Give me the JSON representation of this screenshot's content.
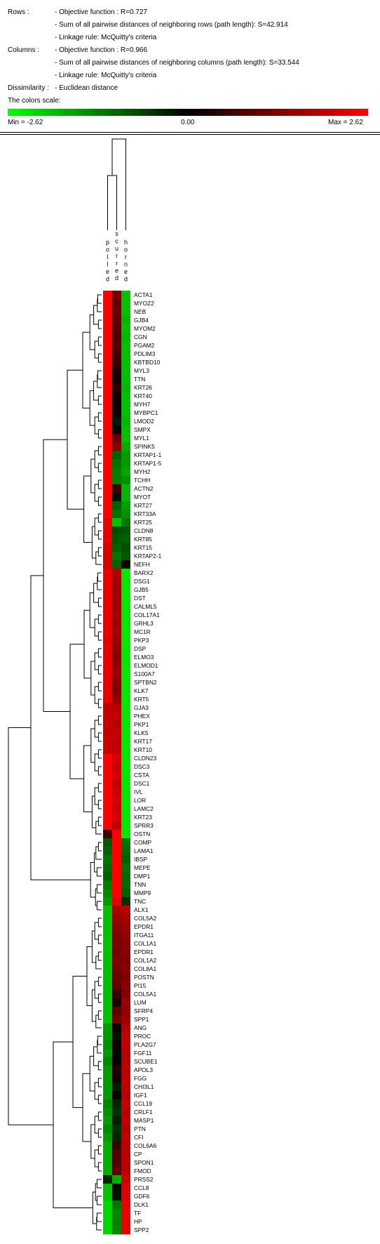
{
  "header": {
    "rows_label": "Rows :",
    "rows_objective": "- Objective function : R=0.727",
    "rows_sum": "- Sum of all pairwise distances of neighboring rows (path length): S=42.914",
    "rows_linkage": "- Linkage rule:  McQuitty's criteria",
    "cols_label": "Columns :",
    "cols_objective": "- Objective function : R=0.966",
    "cols_sum": "- Sum of all pairwise distances of neighboring columns (path length): S=33.544",
    "cols_linkage": "- Linkage rule:  McQuitty's criteria",
    "dissim_label": "Dissimilarity :",
    "dissim_value": "- Euclidean distance",
    "scale_label": "The colors scale:",
    "scale_min": "Min = -2.62",
    "scale_mid": "0.00",
    "scale_max": "Max = 2.62"
  },
  "colors": {
    "low": "#00ff00",
    "mid": "#000000",
    "high": "#ff0000"
  },
  "chart_data": {
    "type": "heatmap",
    "columns": [
      "polled",
      "scurred",
      "horned"
    ],
    "column_labels": [
      [
        "p",
        "o",
        "l",
        "l",
        "e",
        "d"
      ],
      [
        "s",
        "c",
        "u",
        "r",
        "r",
        "e",
        "d"
      ],
      [
        "h",
        "o",
        "r",
        "n",
        "e",
        "d"
      ]
    ],
    "range": [
      -2.62,
      2.62
    ],
    "rows": [
      {
        "gene": "ACTA1",
        "values": [
          2.6,
          1.2,
          -2.0
        ]
      },
      {
        "gene": "MYOZ2",
        "values": [
          2.6,
          1.0,
          -2.0
        ]
      },
      {
        "gene": "NEB",
        "values": [
          2.6,
          1.1,
          -2.0
        ]
      },
      {
        "gene": "GJB4",
        "values": [
          2.6,
          1.0,
          -1.9
        ]
      },
      {
        "gene": "MYOM2",
        "values": [
          2.6,
          0.9,
          -2.0
        ]
      },
      {
        "gene": "CGN",
        "values": [
          2.6,
          0.8,
          -1.9
        ]
      },
      {
        "gene": "PGAM2",
        "values": [
          2.6,
          0.9,
          -2.0
        ]
      },
      {
        "gene": "PDLIM3",
        "values": [
          2.6,
          0.7,
          -2.0
        ]
      },
      {
        "gene": "KBTBD10",
        "values": [
          2.6,
          0.6,
          -2.0
        ]
      },
      {
        "gene": "MYL3",
        "values": [
          2.6,
          0.3,
          -2.0
        ]
      },
      {
        "gene": "TTN",
        "values": [
          2.6,
          0.2,
          -2.0
        ]
      },
      {
        "gene": "KRT26",
        "values": [
          2.6,
          0.4,
          -1.9
        ]
      },
      {
        "gene": "KRT40",
        "values": [
          2.6,
          0.2,
          -2.0
        ]
      },
      {
        "gene": "MYH7",
        "values": [
          2.6,
          0.1,
          -2.0
        ]
      },
      {
        "gene": "MYBPC1",
        "values": [
          2.6,
          0.2,
          -2.0
        ]
      },
      {
        "gene": "LMOD2",
        "values": [
          2.6,
          -0.3,
          -1.9
        ]
      },
      {
        "gene": "SMPX",
        "values": [
          2.6,
          0.1,
          -2.0
        ]
      },
      {
        "gene": "MYL1",
        "values": [
          2.6,
          1.0,
          -2.0
        ]
      },
      {
        "gene": "SPINK5",
        "values": [
          2.6,
          1.4,
          -1.8
        ]
      },
      {
        "gene": "KRTAP1-1",
        "values": [
          2.6,
          -1.0,
          -1.6
        ]
      },
      {
        "gene": "KRTAP1-5",
        "values": [
          2.6,
          -1.2,
          -1.6
        ]
      },
      {
        "gene": "MYH2",
        "values": [
          2.6,
          -1.3,
          -1.7
        ]
      },
      {
        "gene": "TCHH",
        "values": [
          2.6,
          -1.3,
          -1.5
        ]
      },
      {
        "gene": "ACTN2",
        "values": [
          2.6,
          0.6,
          -1.9
        ]
      },
      {
        "gene": "MYOT",
        "values": [
          2.6,
          -0.2,
          -1.9
        ]
      },
      {
        "gene": "KRT27",
        "values": [
          2.6,
          -1.0,
          -1.6
        ]
      },
      {
        "gene": "KRT33A",
        "values": [
          2.6,
          -1.2,
          -1.5
        ]
      },
      {
        "gene": "KRT25",
        "values": [
          2.4,
          -2.0,
          -1.2
        ]
      },
      {
        "gene": "CLDN8",
        "values": [
          2.4,
          -0.8,
          -0.9
        ]
      },
      {
        "gene": "KRT85",
        "values": [
          2.4,
          -0.9,
          -1.0
        ]
      },
      {
        "gene": "KRT15",
        "values": [
          2.2,
          -1.0,
          -0.8
        ]
      },
      {
        "gene": "KRTAP2-1",
        "values": [
          2.2,
          -1.2,
          -0.9
        ]
      },
      {
        "gene": "NEFH",
        "values": [
          2.2,
          -1.0,
          0.1
        ]
      },
      {
        "gene": "BARX2",
        "values": [
          2.4,
          1.8,
          -2.4
        ]
      },
      {
        "gene": "DSG1",
        "values": [
          2.4,
          1.7,
          -2.4
        ]
      },
      {
        "gene": "GJB5",
        "values": [
          2.4,
          1.6,
          -2.4
        ]
      },
      {
        "gene": "DST",
        "values": [
          2.4,
          1.7,
          -2.4
        ]
      },
      {
        "gene": "CALML5",
        "values": [
          2.4,
          1.6,
          -2.4
        ]
      },
      {
        "gene": "COL17A1",
        "values": [
          2.4,
          1.7,
          -2.4
        ]
      },
      {
        "gene": "GRHL3",
        "values": [
          2.4,
          1.6,
          -2.4
        ]
      },
      {
        "gene": "MC1R",
        "values": [
          2.4,
          1.7,
          -2.4
        ]
      },
      {
        "gene": "PKP3",
        "values": [
          2.3,
          1.6,
          -2.4
        ]
      },
      {
        "gene": "DSP",
        "values": [
          2.4,
          1.5,
          -2.4
        ]
      },
      {
        "gene": "ELMO3",
        "values": [
          2.4,
          1.4,
          -2.4
        ]
      },
      {
        "gene": "ELMOD1",
        "values": [
          2.4,
          1.5,
          -2.4
        ]
      },
      {
        "gene": "S100A7",
        "values": [
          2.4,
          1.6,
          -2.4
        ]
      },
      {
        "gene": "SPTBN2",
        "values": [
          2.4,
          1.4,
          -2.4
        ]
      },
      {
        "gene": "KLK7",
        "values": [
          2.4,
          1.3,
          -2.4
        ]
      },
      {
        "gene": "KRT5",
        "values": [
          2.4,
          1.5,
          -2.4
        ]
      },
      {
        "gene": "GJA3",
        "values": [
          2.0,
          1.9,
          -2.4
        ]
      },
      {
        "gene": "PHEX",
        "values": [
          2.0,
          2.0,
          -2.4
        ]
      },
      {
        "gene": "PKP1",
        "values": [
          2.1,
          1.9,
          -2.4
        ]
      },
      {
        "gene": "KLK5",
        "values": [
          2.0,
          2.0,
          -2.4
        ]
      },
      {
        "gene": "KRT17",
        "values": [
          2.1,
          1.9,
          -2.4
        ]
      },
      {
        "gene": "KRT10",
        "values": [
          2.1,
          2.0,
          -2.4
        ]
      },
      {
        "gene": "CLDN23",
        "values": [
          2.6,
          2.2,
          -2.4
        ]
      },
      {
        "gene": "DSC3",
        "values": [
          2.6,
          2.1,
          -2.4
        ]
      },
      {
        "gene": "CSTA",
        "values": [
          2.6,
          2.2,
          -2.4
        ]
      },
      {
        "gene": "DSC1",
        "values": [
          2.6,
          2.0,
          -2.4
        ]
      },
      {
        "gene": "IVL",
        "values": [
          2.6,
          2.1,
          -2.4
        ]
      },
      {
        "gene": "LOR",
        "values": [
          2.6,
          2.2,
          -2.4
        ]
      },
      {
        "gene": "LAMC2",
        "values": [
          2.6,
          2.1,
          -2.4
        ]
      },
      {
        "gene": "KRT23",
        "values": [
          2.6,
          2.2,
          -2.4
        ]
      },
      {
        "gene": "SPRR3",
        "values": [
          2.6,
          2.0,
          -2.4
        ]
      },
      {
        "gene": "OSTN",
        "values": [
          0.6,
          2.6,
          -2.4
        ]
      },
      {
        "gene": "COMP",
        "values": [
          -0.9,
          2.6,
          -1.2
        ]
      },
      {
        "gene": "LAMA1",
        "values": [
          -1.0,
          2.6,
          -1.1
        ]
      },
      {
        "gene": "IBSP",
        "values": [
          -1.2,
          2.6,
          -1.0
        ]
      },
      {
        "gene": "MEPE",
        "values": [
          -1.1,
          2.6,
          -1.2
        ]
      },
      {
        "gene": "DMP1",
        "values": [
          -1.0,
          2.6,
          -1.1
        ]
      },
      {
        "gene": "TNN",
        "values": [
          -1.3,
          2.6,
          -1.1
        ]
      },
      {
        "gene": "MMP9",
        "values": [
          -1.4,
          2.6,
          -1.0
        ]
      },
      {
        "gene": "TNC",
        "values": [
          -1.6,
          2.4,
          -0.5
        ]
      },
      {
        "gene": "ALX1",
        "values": [
          -2.0,
          1.8,
          1.9
        ]
      },
      {
        "gene": "COL5A2",
        "values": [
          -2.0,
          1.6,
          1.7
        ]
      },
      {
        "gene": "EPDR1",
        "values": [
          -2.0,
          1.4,
          1.6
        ]
      },
      {
        "gene": "ITGA11",
        "values": [
          -2.0,
          1.3,
          1.5
        ]
      },
      {
        "gene": "COL1A1",
        "values": [
          -2.0,
          1.3,
          1.4
        ]
      },
      {
        "gene": "EPDR1",
        "values": [
          -2.0,
          1.2,
          1.4
        ]
      },
      {
        "gene": "COL1A2",
        "values": [
          -2.0,
          1.3,
          1.3
        ]
      },
      {
        "gene": "COL8A1",
        "values": [
          -2.0,
          1.2,
          1.4
        ]
      },
      {
        "gene": "POSTN",
        "values": [
          -2.0,
          1.1,
          1.3
        ]
      },
      {
        "gene": "PI15",
        "values": [
          -2.0,
          1.0,
          1.4
        ]
      },
      {
        "gene": "COL5A1",
        "values": [
          -2.0,
          0.6,
          1.3
        ]
      },
      {
        "gene": "LUM",
        "values": [
          -2.0,
          0.3,
          1.6
        ]
      },
      {
        "gene": "SFRP4",
        "values": [
          -2.0,
          1.0,
          1.5
        ]
      },
      {
        "gene": "SPP1",
        "values": [
          -2.0,
          1.2,
          1.6
        ]
      },
      {
        "gene": "ANG",
        "values": [
          -1.6,
          0.1,
          1.9
        ]
      },
      {
        "gene": "PROC",
        "values": [
          -1.6,
          -0.2,
          2.0
        ]
      },
      {
        "gene": "PLA2G7",
        "values": [
          -1.5,
          0.2,
          2.0
        ]
      },
      {
        "gene": "FGF11",
        "values": [
          -1.6,
          -0.1,
          1.9
        ]
      },
      {
        "gene": "SCUBE1",
        "values": [
          -1.4,
          0.0,
          1.9
        ]
      },
      {
        "gene": "APOL3",
        "values": [
          -1.6,
          0.4,
          1.9
        ]
      },
      {
        "gene": "FGG",
        "values": [
          -1.6,
          0.2,
          2.0
        ]
      },
      {
        "gene": "CHI3L1",
        "values": [
          -1.6,
          -0.3,
          2.0
        ]
      },
      {
        "gene": "IGF1",
        "values": [
          -1.6,
          0.1,
          1.9
        ]
      },
      {
        "gene": "CCL19",
        "values": [
          -1.4,
          -0.4,
          2.0
        ]
      },
      {
        "gene": "CRLF1",
        "values": [
          -1.5,
          -0.5,
          1.9
        ]
      },
      {
        "gene": "MASP1",
        "values": [
          -1.6,
          -0.3,
          2.0
        ]
      },
      {
        "gene": "PTN",
        "values": [
          -1.4,
          -0.5,
          1.9
        ]
      },
      {
        "gene": "CFI",
        "values": [
          -1.6,
          -0.4,
          2.0
        ]
      },
      {
        "gene": "COL6A6",
        "values": [
          -1.8,
          0.6,
          1.9
        ]
      },
      {
        "gene": "CP",
        "values": [
          -1.8,
          0.9,
          1.9
        ]
      },
      {
        "gene": "SPON1",
        "values": [
          -1.8,
          0.8,
          1.9
        ]
      },
      {
        "gene": "FMOD",
        "values": [
          -1.8,
          1.0,
          1.9
        ]
      },
      {
        "gene": "PRSS2",
        "values": [
          -0.4,
          -1.8,
          2.1
        ]
      },
      {
        "gene": "CCL8",
        "values": [
          -2.0,
          -0.1,
          2.3
        ]
      },
      {
        "gene": "GDF6",
        "values": [
          -2.0,
          -0.2,
          2.3
        ]
      },
      {
        "gene": "DLK1",
        "values": [
          -2.2,
          -1.2,
          2.4
        ]
      },
      {
        "gene": "TF",
        "values": [
          -2.2,
          -1.4,
          2.4
        ]
      },
      {
        "gene": "HP",
        "values": [
          -2.2,
          -1.3,
          2.4
        ]
      },
      {
        "gene": "SPP2",
        "values": [
          -2.2,
          -1.4,
          2.4
        ]
      }
    ]
  }
}
